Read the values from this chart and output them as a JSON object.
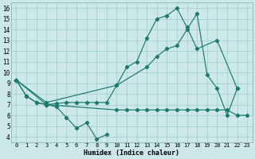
{
  "xlabel": "Humidex (Indice chaleur)",
  "bg_color": "#cce8e8",
  "grid_color": "#aacfcf",
  "line_color": "#1a7a6e",
  "xlim": [
    -0.5,
    23.5
  ],
  "ylim": [
    3.5,
    16.5
  ],
  "yticks": [
    4,
    5,
    6,
    7,
    8,
    9,
    10,
    11,
    12,
    13,
    14,
    15,
    16
  ],
  "xticks": [
    0,
    1,
    2,
    3,
    4,
    5,
    6,
    7,
    8,
    9,
    10,
    11,
    12,
    13,
    14,
    15,
    16,
    17,
    18,
    19,
    20,
    21,
    22,
    23
  ],
  "line1_x": [
    0,
    1,
    2,
    3,
    4,
    5,
    6,
    7,
    8,
    9
  ],
  "line1_y": [
    9.3,
    7.8,
    7.2,
    7.0,
    6.8,
    5.8,
    4.8,
    5.3,
    3.8,
    4.2
  ],
  "line2_x": [
    0,
    1,
    2,
    3,
    4,
    5,
    6,
    7,
    8,
    9,
    10,
    11,
    12,
    13,
    14,
    15,
    16,
    17,
    18,
    20,
    22
  ],
  "line2_y": [
    9.3,
    7.8,
    7.2,
    7.0,
    7.1,
    7.2,
    7.2,
    7.2,
    7.2,
    7.2,
    8.8,
    10.5,
    11.0,
    13.2,
    15.0,
    15.3,
    16.0,
    14.2,
    12.2,
    13.0,
    8.5
  ],
  "line3_x": [
    0,
    3,
    10,
    13,
    14,
    15,
    16,
    17,
    18,
    19,
    20,
    21,
    22
  ],
  "line3_y": [
    9.3,
    7.2,
    8.8,
    10.5,
    11.5,
    12.2,
    12.5,
    14.0,
    15.5,
    9.8,
    8.5,
    6.0,
    8.5
  ],
  "line4_x": [
    0,
    3,
    10,
    11,
    12,
    13,
    14,
    15,
    16,
    17,
    18,
    19,
    20,
    21,
    22,
    23
  ],
  "line4_y": [
    9.3,
    7.0,
    6.5,
    6.5,
    6.5,
    6.5,
    6.5,
    6.5,
    6.5,
    6.5,
    6.5,
    6.5,
    6.5,
    6.5,
    6.0,
    6.0
  ]
}
